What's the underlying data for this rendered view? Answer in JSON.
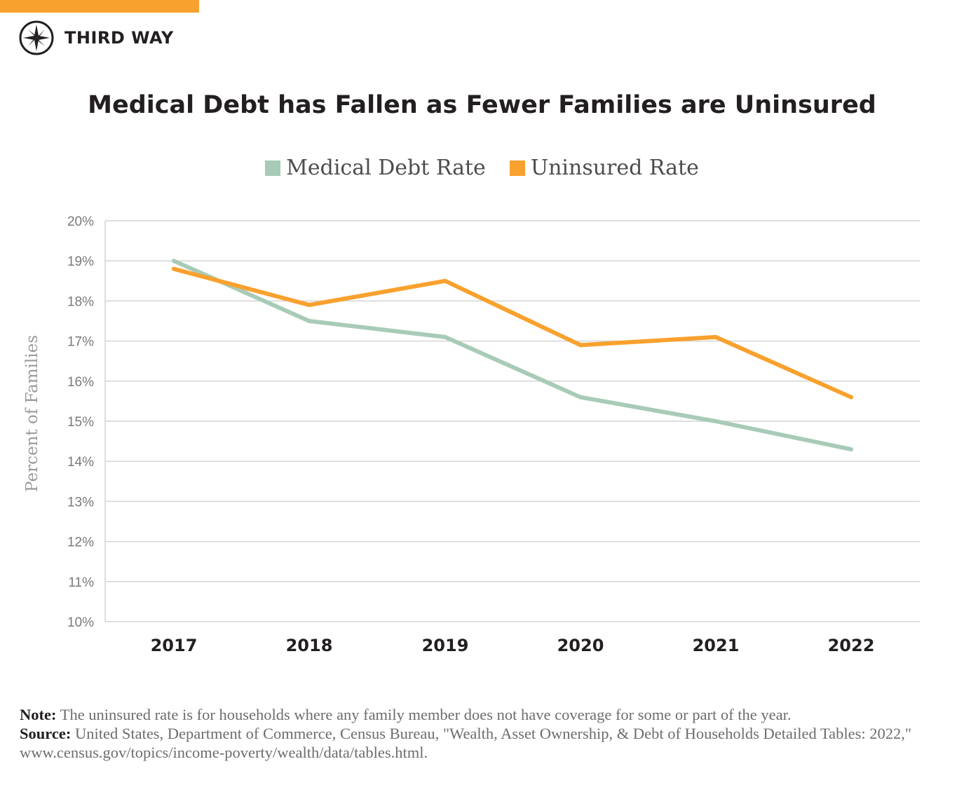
{
  "brand": {
    "name": "THIRD WAY",
    "accent_color": "#f9a12e",
    "logo_icon": "compass-star-icon"
  },
  "chart_data": {
    "type": "line",
    "title": "Medical Debt has Fallen as Fewer Families are Uninsured",
    "xlabel": "",
    "ylabel": "Percent of Families",
    "ylim": [
      10,
      20
    ],
    "yticks": [
      "10%",
      "11%",
      "12%",
      "13%",
      "14%",
      "15%",
      "16%",
      "17%",
      "18%",
      "19%",
      "20%"
    ],
    "ytick_values": [
      10,
      11,
      12,
      13,
      14,
      15,
      16,
      17,
      18,
      19,
      20
    ],
    "categories": [
      "2017",
      "2018",
      "2019",
      "2020",
      "2021",
      "2022"
    ],
    "grid": true,
    "legend_position": "top-center",
    "series": [
      {
        "name": "Medical Debt Rate",
        "color": "#a8cbb7",
        "values": [
          19.0,
          17.5,
          17.1,
          15.6,
          15.0,
          14.3
        ]
      },
      {
        "name": "Uninsured Rate",
        "color": "#f9a12e",
        "values": [
          18.8,
          17.9,
          18.5,
          16.9,
          17.1,
          15.6
        ]
      }
    ]
  },
  "footnote": {
    "note_label": "Note:",
    "note_text": " The uninsured rate is for households where any family member does not have coverage for some or part of the year.",
    "source_label": "Source:",
    "source_text": " United States, Department of Commerce, Census Bureau, \"Wealth, Asset Ownership, & Debt of Households Detailed Tables: 2022,\" www.census.gov/topics/income-poverty/wealth/data/tables.html."
  }
}
